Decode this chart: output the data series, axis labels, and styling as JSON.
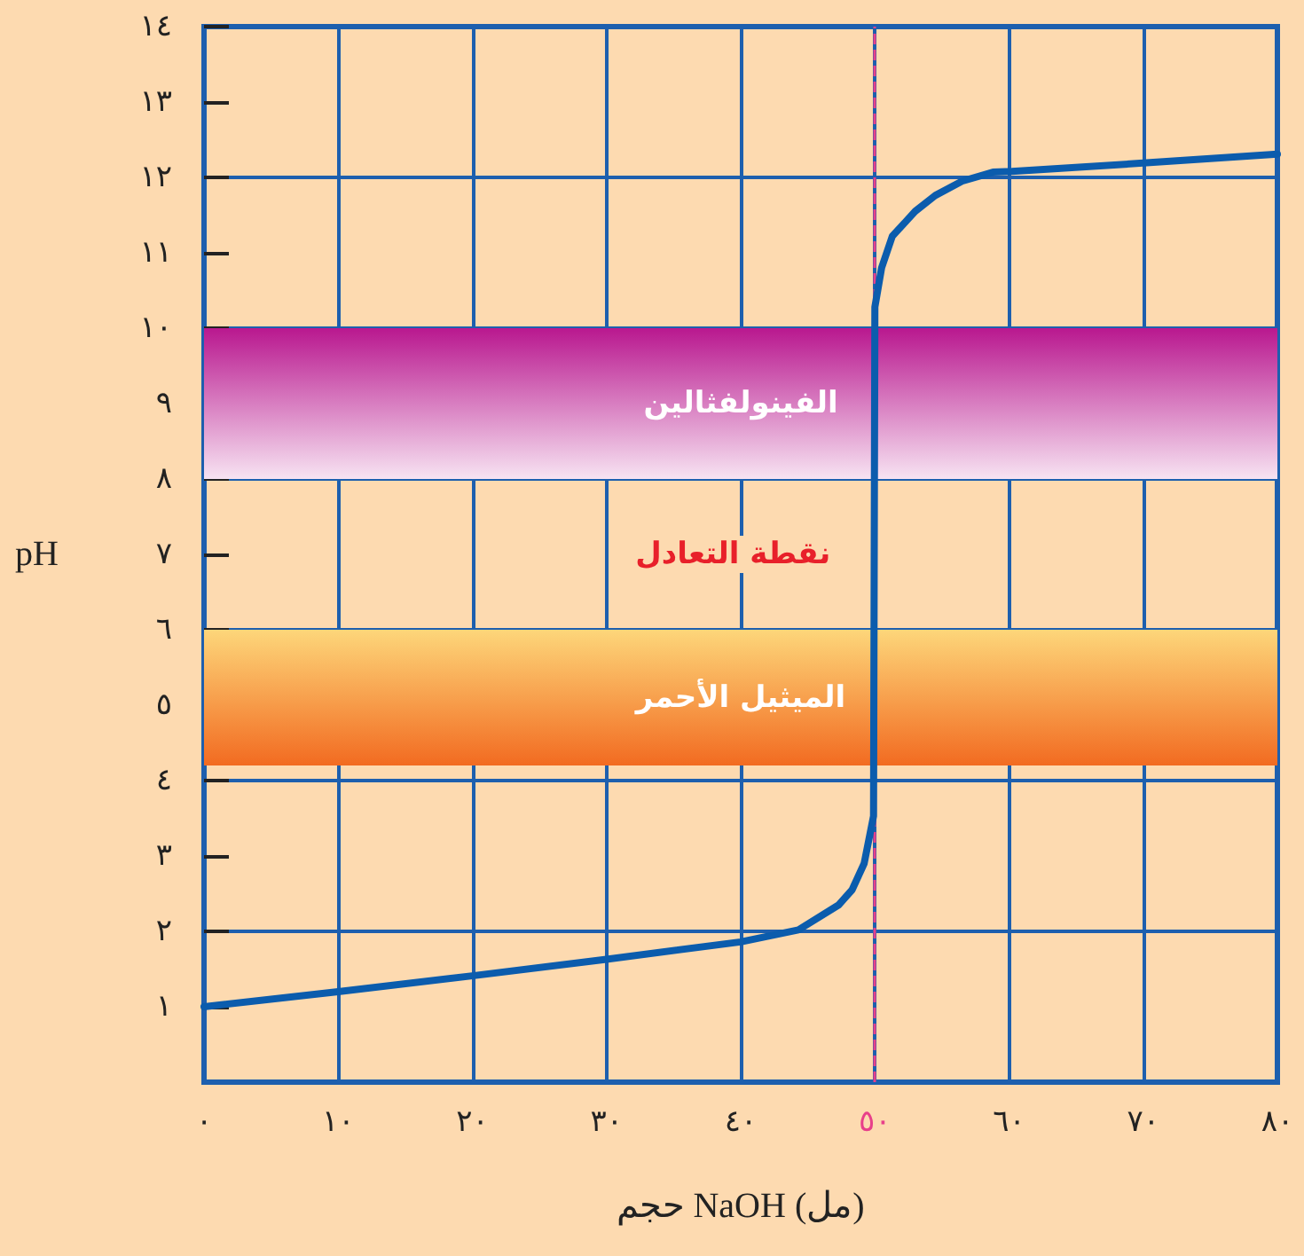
{
  "chart_data": {
    "type": "line",
    "xlabel": "حجم NaOH (مل)",
    "ylabel": "pH",
    "x": [
      0,
      10,
      20,
      30,
      40,
      44.3,
      47.3,
      48.3,
      49.2,
      49.9,
      50,
      50.5,
      51.3,
      53,
      54.5,
      56.5,
      58.8,
      60.2,
      70,
      80
    ],
    "values": [
      1,
      1.2,
      1.41,
      1.63,
      1.86,
      2.02,
      2.35,
      2.55,
      2.9,
      3.53,
      10.28,
      10.8,
      11.22,
      11.55,
      11.76,
      11.95,
      12.07,
      12.08,
      12.19,
      12.31
    ],
    "color": "#0b5cad",
    "marker": "none",
    "line_style": "solid",
    "xlim": [
      0,
      80
    ],
    "xticks": [
      {
        "value": 0,
        "label": "٠"
      },
      {
        "value": 10,
        "label": "١٠"
      },
      {
        "value": 20,
        "label": "٢٠"
      },
      {
        "value": 30,
        "label": "٣٠"
      },
      {
        "value": 40,
        "label": "٤٠"
      },
      {
        "value": 50,
        "label": "٥٠"
      },
      {
        "value": 60,
        "label": "٦٠"
      },
      {
        "value": 70,
        "label": "٧٠"
      },
      {
        "value": 80,
        "label": "٨٠"
      }
    ],
    "ylim": [
      0,
      14
    ],
    "yticks": [
      {
        "value": 1,
        "label": "١"
      },
      {
        "value": 2,
        "label": "٢"
      },
      {
        "value": 3,
        "label": "٣"
      },
      {
        "value": 4,
        "label": "٤"
      },
      {
        "value": 5,
        "label": "٥"
      },
      {
        "value": 6,
        "label": "٦"
      },
      {
        "value": 7,
        "label": "٧"
      },
      {
        "value": 8,
        "label": "٨"
      },
      {
        "value": 9,
        "label": "٩"
      },
      {
        "value": 10,
        "label": "١٠"
      },
      {
        "value": 11,
        "label": "١١"
      },
      {
        "value": 12,
        "label": "١٢"
      },
      {
        "value": 13,
        "label": "١٣"
      },
      {
        "value": 14,
        "label": "١٤"
      }
    ],
    "grid": true,
    "ref_lines": [
      {
        "axis": "x",
        "value": 50,
        "label": null,
        "color": "#e8408a",
        "line_style": "dashed"
      }
    ],
    "bands": [
      {
        "axis": "y",
        "from": 8,
        "to": 10,
        "label": "الفينولفثالين",
        "color": "#b9188f"
      },
      {
        "axis": "y",
        "from": 4.2,
        "to": 6,
        "label": "الميثيل الأحمر",
        "color": "#f26b21"
      }
    ],
    "annotations": [
      {
        "text": "نقطة التعادل",
        "x": 50,
        "y": 7
      }
    ]
  }
}
